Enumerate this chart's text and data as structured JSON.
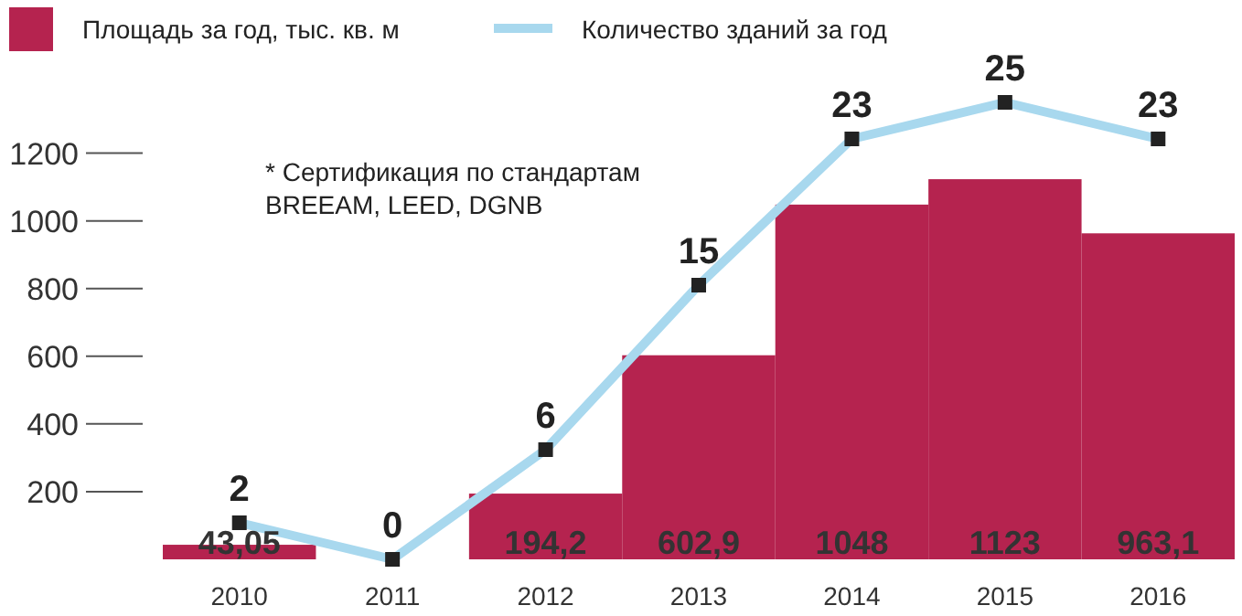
{
  "chart_data": {
    "type": "bar",
    "categories": [
      "2010",
      "2011",
      "2012",
      "2013",
      "2014",
      "2015",
      "2016"
    ],
    "series": [
      {
        "name": "Площадь за год, тыс. кв. м",
        "color": "#b5234f",
        "values": [
          43.05,
          null,
          194.2,
          602.9,
          1048,
          1123,
          963.1
        ],
        "value_labels": [
          "43,05",
          null,
          "194,2",
          "602,9",
          "1048",
          "1123",
          "963,1"
        ]
      },
      {
        "name": "Количество зданий за год",
        "type": "line",
        "axis": "y2",
        "color": "#a8d8ee",
        "values": [
          2,
          0,
          6,
          15,
          23,
          25,
          23
        ],
        "value_labels": [
          "2",
          "0",
          "6",
          "15",
          "23",
          "25",
          "23"
        ]
      }
    ],
    "ylim": [
      0,
      1350
    ],
    "yticks": [
      200,
      400,
      600,
      800,
      1000,
      1200
    ],
    "tick_labels": "xy",
    "marker": "square",
    "legend": "top left",
    "grid": false,
    "annotations": [
      "* Сертификация по стандартам\nBREEAM, LEED, DGNB"
    ]
  }
}
